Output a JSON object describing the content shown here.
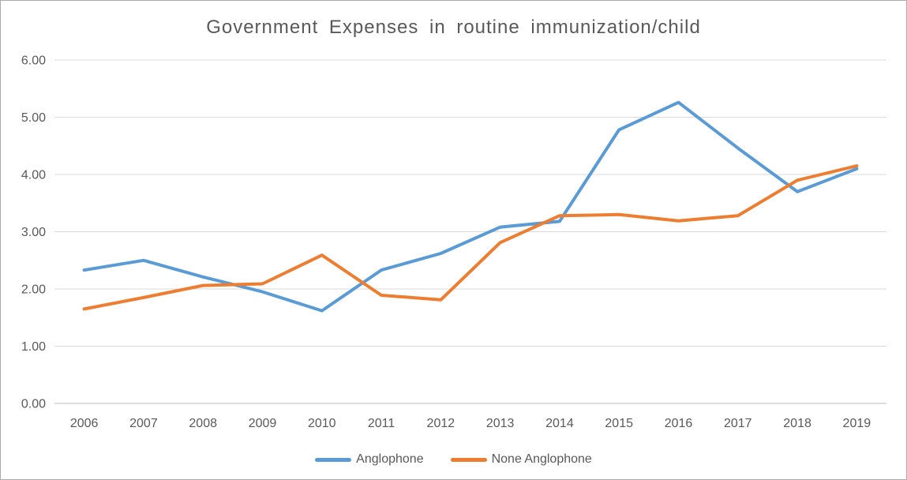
{
  "chart_data": {
    "type": "line",
    "title": "Government Expenses in routine immunization/child",
    "categories": [
      "2006",
      "2007",
      "2008",
      "2009",
      "2010",
      "2011",
      "2012",
      "2013",
      "2014",
      "2015",
      "2016",
      "2017",
      "2018",
      "2019"
    ],
    "series": [
      {
        "name": "Anglophone",
        "color": "#5B9BD5",
        "values": [
          2.33,
          2.5,
          2.21,
          1.95,
          1.62,
          2.33,
          2.62,
          3.08,
          3.18,
          4.78,
          5.26,
          4.46,
          3.7,
          4.1
        ]
      },
      {
        "name": "None Anglophone",
        "color": "#ED7D31",
        "values": [
          1.65,
          1.85,
          2.06,
          2.09,
          2.59,
          1.89,
          1.81,
          2.81,
          3.28,
          3.3,
          3.19,
          3.28,
          3.9,
          4.15
        ]
      }
    ],
    "xlabel": "",
    "ylabel": "",
    "ylim": [
      0,
      6
    ],
    "y_ticks": [
      6,
      5,
      4,
      3,
      2,
      1,
      0
    ],
    "y_tick_labels": [
      "6.00",
      "5.00",
      "4.00",
      "3.00",
      "2.00",
      "1.00",
      "0.00"
    ],
    "grid": true,
    "legend_position": "bottom"
  },
  "style": {
    "gridline_color": "#D9D9D9",
    "axis_line_color": "#BFBFBF",
    "text_color": "#595959",
    "frame_border_color": "#ABABAB",
    "background": "#FFFFFF"
  }
}
